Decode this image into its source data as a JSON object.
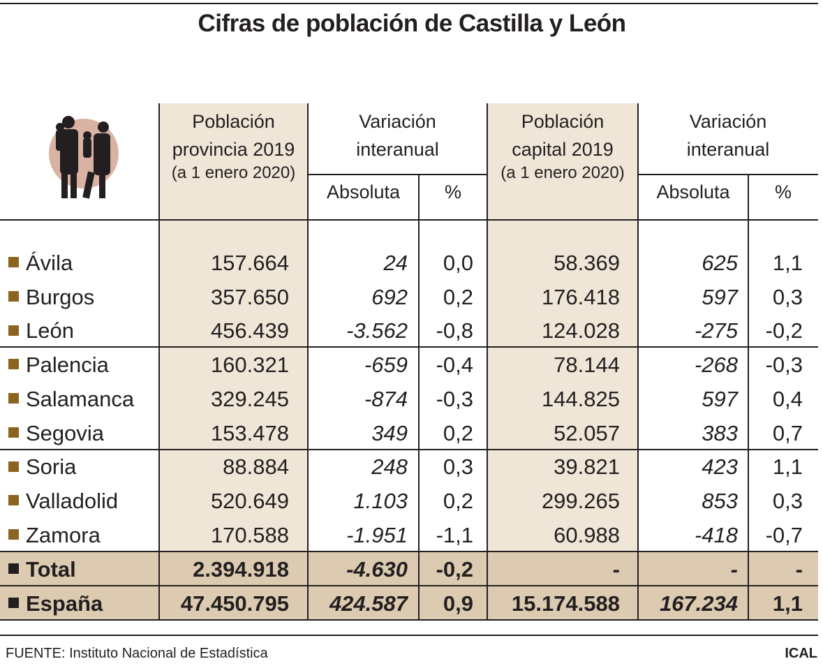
{
  "chart_data": {
    "type": "table",
    "title": "Cifras de población de Castilla y León",
    "columns": {
      "pop_prov": [
        "Población",
        "provincia 2019",
        "(a 1 enero 2020)"
      ],
      "var_prov": [
        "Variación",
        "interanual"
      ],
      "pop_cap": [
        "Población",
        "capital 2019",
        "(a 1 enero 2020)"
      ],
      "var_cap": [
        "Variación",
        "interanual"
      ],
      "abs": "Absoluta",
      "pct": "%"
    },
    "rows": [
      {
        "name": "Ávila",
        "pp": "157.664",
        "pa": "24",
        "ppct": "0,0",
        "cp": "58.369",
        "ca": "625",
        "cpct": "1,1"
      },
      {
        "name": "Burgos",
        "pp": "357.650",
        "pa": "692",
        "ppct": "0,2",
        "cp": "176.418",
        "ca": "597",
        "cpct": "0,3"
      },
      {
        "name": "León",
        "pp": "456.439",
        "pa": "-3.562",
        "ppct": "-0,8",
        "cp": "124.028",
        "ca": "-275",
        "cpct": "-0,2"
      },
      {
        "name": "Palencia",
        "pp": "160.321",
        "pa": "-659",
        "ppct": "-0,4",
        "cp": "78.144",
        "ca": "-268",
        "cpct": "-0,3"
      },
      {
        "name": "Salamanca",
        "pp": "329.245",
        "pa": "-874",
        "ppct": "-0,3",
        "cp": "144.825",
        "ca": "597",
        "cpct": "0,4"
      },
      {
        "name": "Segovia",
        "pp": "153.478",
        "pa": "349",
        "ppct": "0,2",
        "cp": "52.057",
        "ca": "383",
        "cpct": "0,7"
      },
      {
        "name": "Soria",
        "pp": "88.884",
        "pa": "248",
        "ppct": "0,3",
        "cp": "39.821",
        "ca": "423",
        "cpct": "1,1"
      },
      {
        "name": "Valladolid",
        "pp": "520.649",
        "pa": "1.103",
        "ppct": "0,2",
        "cp": "299.265",
        "ca": "853",
        "cpct": "0,3"
      },
      {
        "name": "Zamora",
        "pp": "170.588",
        "pa": "-1.951",
        "ppct": "-1,1",
        "cp": "60.988",
        "ca": "-418",
        "cpct": "-0,7"
      },
      {
        "name": "Total",
        "pp": "2.394.918",
        "pa": "-4.630",
        "ppct": "-0,2",
        "cp": "-",
        "ca": "-",
        "cpct": "-",
        "total": true
      },
      {
        "name": "España",
        "pp": "47.450.795",
        "pa": "424.587",
        "ppct": "0,9",
        "cp": "15.174.588",
        "ca": "167.234",
        "cpct": "1,1",
        "total": true
      }
    ]
  },
  "footer": {
    "source": "FUENTE: Instituto Nacional de Estadística",
    "brand": "ICAL"
  },
  "colors": {
    "shade": "#efe6d7",
    "total": "#dccbb0",
    "bullet": "#8b6420"
  }
}
